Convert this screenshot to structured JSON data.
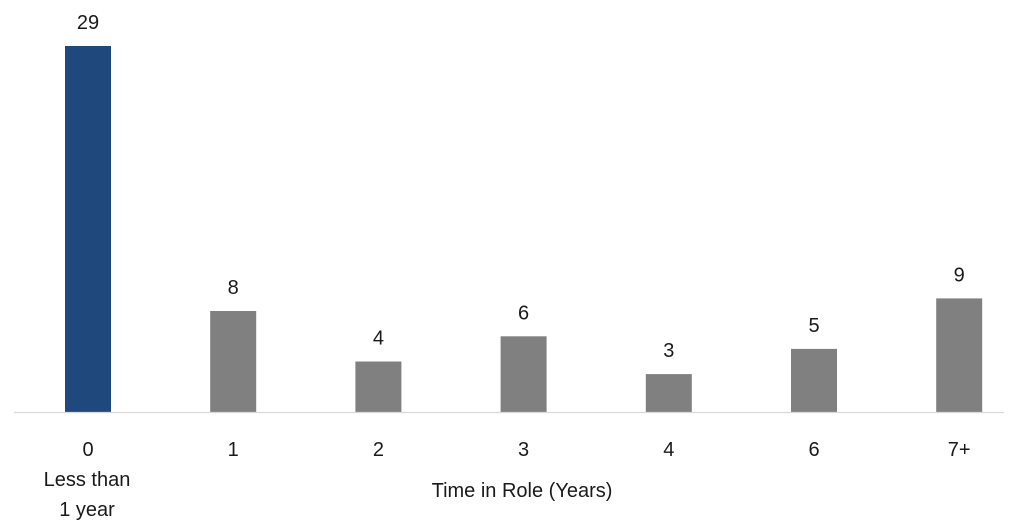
{
  "chart_data": {
    "type": "bar",
    "categories": [
      "0",
      "1",
      "2",
      "3",
      "4",
      "6",
      "7+"
    ],
    "category_sublabels": [
      "Less than",
      "1 year"
    ],
    "values": [
      29,
      8,
      4,
      6,
      3,
      5,
      9
    ],
    "data_labels": [
      "29",
      "8",
      "4",
      "6",
      "3",
      "5",
      "9"
    ],
    "title": "",
    "xlabel": "Time in Role (Years)",
    "ylabel": "",
    "ylim": [
      0,
      29
    ],
    "grid": false,
    "legend": "none",
    "colors": {
      "highlight": "#1f497d",
      "default": "#808080",
      "axis": "#d9d9d9",
      "text": "#1a1a1a"
    },
    "highlight_index": 0
  }
}
